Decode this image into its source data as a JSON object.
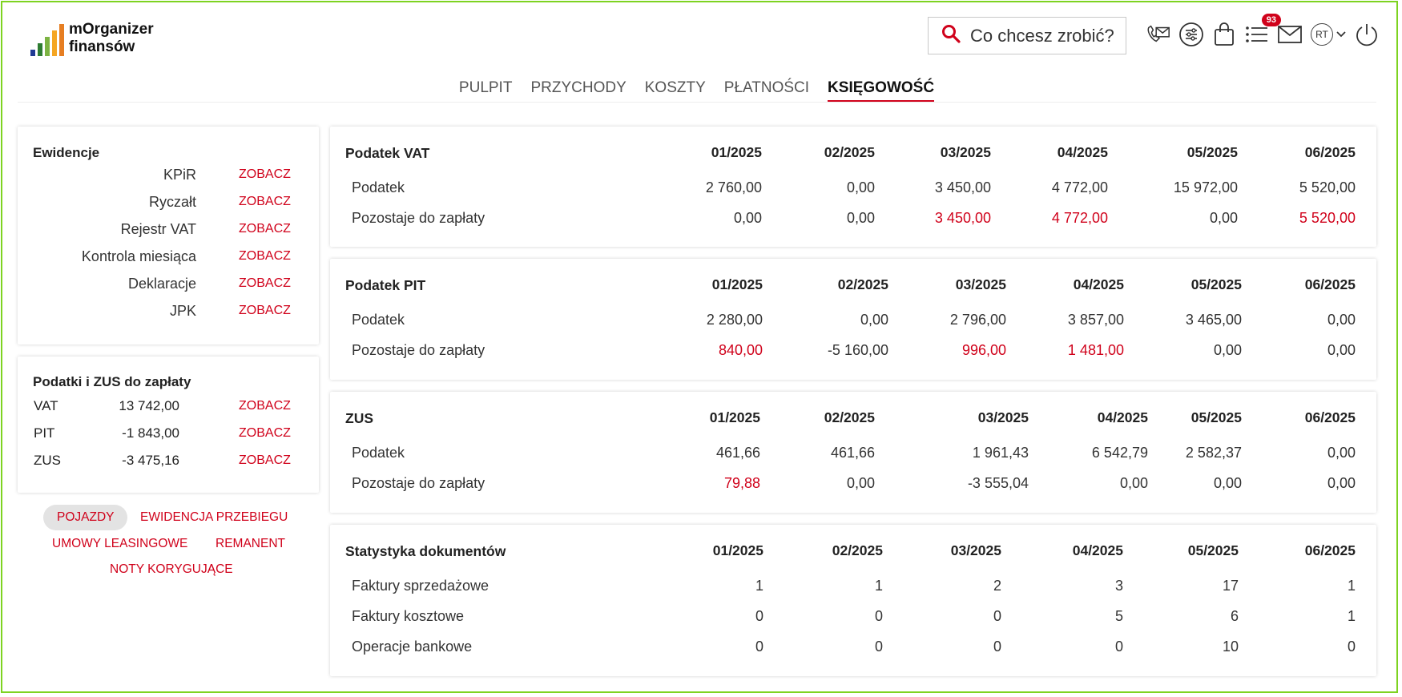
{
  "app": {
    "logo_line1": "mOrganizer",
    "logo_line2": "finansów",
    "accent": "#d0021b",
    "border": "#7ed321"
  },
  "search": {
    "placeholder": "Co chcesz zrobić?"
  },
  "header_icons": [
    "phone-mail-icon",
    "settings-sliders-icon",
    "shopping-bag-icon",
    "list-icon",
    "mail-icon",
    "avatar",
    "power-icon"
  ],
  "notifications": {
    "count": "93"
  },
  "user": {
    "initials": "RT"
  },
  "nav": [
    {
      "label": "PULPIT",
      "active": false
    },
    {
      "label": "PRZYCHODY",
      "active": false
    },
    {
      "label": "KOSZTY",
      "active": false
    },
    {
      "label": "PŁATNOŚCI",
      "active": false
    },
    {
      "label": "KSIĘGOWOŚĆ",
      "active": true
    }
  ],
  "ewidencje": {
    "title": "Ewidencje",
    "link_label": "ZOBACZ",
    "items": [
      "KPiR",
      "Ryczałt",
      "Rejestr VAT",
      "Kontrola miesiąca",
      "Deklaracje",
      "JPK"
    ]
  },
  "taxes_due": {
    "title": "Podatki i ZUS do zapłaty",
    "link_label": "ZOBACZ",
    "items": [
      {
        "name": "VAT",
        "value": "13 742,00"
      },
      {
        "name": "PIT",
        "value": "-1 843,00"
      },
      {
        "name": "ZUS",
        "value": "-3 475,16"
      }
    ]
  },
  "quick_links": {
    "pojazdy": "POJAZDY",
    "przebieg": "EWIDENCJA PRZEBIEGU",
    "leasing": "UMOWY LEASINGOWE",
    "remanent": "REMANENT",
    "noty": "NOTY KORYGUJĄCE"
  },
  "tables": [
    {
      "title": "Podatek VAT",
      "months": [
        "01/2025",
        "02/2025",
        "03/2025",
        "04/2025",
        "05/2025",
        "06/2025"
      ],
      "rows": [
        {
          "label": "Podatek",
          "values": [
            "2 760,00",
            "0,00",
            "3 450,00",
            "4 772,00",
            "15 972,00",
            "5 520,00"
          ],
          "red": [
            false,
            false,
            false,
            false,
            false,
            false
          ]
        },
        {
          "label": "Pozostaje do zapłaty",
          "values": [
            "0,00",
            "0,00",
            "3 450,00",
            "4 772,00",
            "0,00",
            "5 520,00"
          ],
          "red": [
            false,
            false,
            true,
            true,
            false,
            true
          ]
        }
      ]
    },
    {
      "title": "Podatek PIT",
      "months": [
        "01/2025",
        "02/2025",
        "03/2025",
        "04/2025",
        "05/2025",
        "06/2025"
      ],
      "rows": [
        {
          "label": "Podatek",
          "values": [
            "2 280,00",
            "0,00",
            "2 796,00",
            "3 857,00",
            "3 465,00",
            "0,00"
          ],
          "red": [
            false,
            false,
            false,
            false,
            false,
            false
          ]
        },
        {
          "label": "Pozostaje do zapłaty",
          "values": [
            "840,00",
            "-5 160,00",
            "996,00",
            "1 481,00",
            "0,00",
            "0,00"
          ],
          "red": [
            true,
            false,
            true,
            true,
            false,
            false
          ]
        }
      ]
    },
    {
      "title": "ZUS",
      "months": [
        "01/2025",
        "02/2025",
        "03/2025",
        "04/2025",
        "05/2025",
        "06/2025"
      ],
      "rows": [
        {
          "label": "Podatek",
          "values": [
            "461,66",
            "461,66",
            "1 961,43",
            "6 542,79",
            "2 582,37",
            "0,00"
          ],
          "red": [
            false,
            false,
            false,
            false,
            false,
            false
          ]
        },
        {
          "label": "Pozostaje do zapłaty",
          "values": [
            "79,88",
            "0,00",
            "-3 555,04",
            "0,00",
            "0,00",
            "0,00"
          ],
          "red": [
            true,
            false,
            false,
            false,
            false,
            false
          ]
        }
      ]
    },
    {
      "title": "Statystyka dokumentów",
      "months": [
        "01/2025",
        "02/2025",
        "03/2025",
        "04/2025",
        "05/2025",
        "06/2025"
      ],
      "rows": [
        {
          "label": "Faktury sprzedażowe",
          "values": [
            "1",
            "1",
            "2",
            "3",
            "17",
            "1"
          ],
          "red": [
            false,
            false,
            false,
            false,
            false,
            false
          ]
        },
        {
          "label": "Faktury kosztowe",
          "values": [
            "0",
            "0",
            "0",
            "5",
            "6",
            "1"
          ],
          "red": [
            false,
            false,
            false,
            false,
            false,
            false
          ]
        },
        {
          "label": "Operacje bankowe",
          "values": [
            "0",
            "0",
            "0",
            "0",
            "10",
            "0"
          ],
          "red": [
            false,
            false,
            false,
            false,
            false,
            false
          ]
        }
      ]
    }
  ]
}
